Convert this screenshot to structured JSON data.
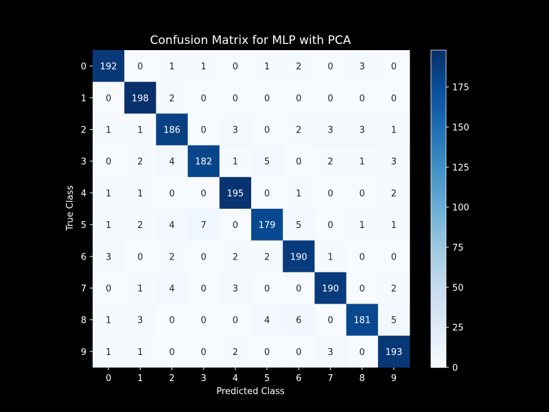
{
  "chart_data": {
    "type": "heatmap",
    "title": "Confusion Matrix for MLP with PCA",
    "xlabel": "Predicted Class",
    "ylabel": "True Class",
    "x_categories": [
      "0",
      "1",
      "2",
      "3",
      "4",
      "5",
      "6",
      "7",
      "8",
      "9"
    ],
    "y_categories": [
      "0",
      "1",
      "2",
      "3",
      "4",
      "5",
      "6",
      "7",
      "8",
      "9"
    ],
    "matrix": [
      [
        192,
        0,
        1,
        1,
        0,
        1,
        2,
        0,
        3,
        0
      ],
      [
        0,
        198,
        2,
        0,
        0,
        0,
        0,
        0,
        0,
        0
      ],
      [
        1,
        1,
        186,
        0,
        3,
        0,
        2,
        3,
        3,
        1
      ],
      [
        0,
        2,
        4,
        182,
        1,
        5,
        0,
        2,
        1,
        3
      ],
      [
        1,
        1,
        0,
        0,
        195,
        0,
        1,
        0,
        0,
        2
      ],
      [
        1,
        2,
        4,
        7,
        0,
        179,
        5,
        0,
        1,
        1
      ],
      [
        3,
        0,
        2,
        0,
        2,
        2,
        190,
        1,
        0,
        0
      ],
      [
        0,
        1,
        4,
        0,
        3,
        0,
        0,
        190,
        0,
        2
      ],
      [
        1,
        3,
        0,
        0,
        0,
        4,
        6,
        0,
        181,
        5
      ],
      [
        1,
        1,
        0,
        0,
        2,
        0,
        0,
        3,
        0,
        193
      ]
    ],
    "colormap": "Blues",
    "value_range": [
      0,
      198
    ],
    "colorbar_ticks": [
      0,
      25,
      50,
      75,
      100,
      125,
      150,
      175
    ],
    "background_color": "#000000",
    "text_color": "#ffffff"
  }
}
